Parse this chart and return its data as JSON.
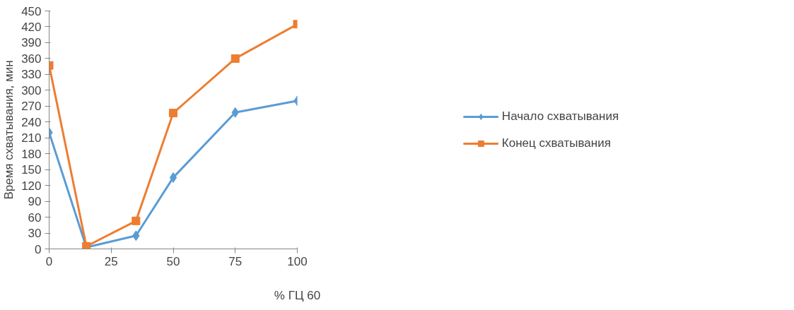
{
  "chart_data": {
    "type": "line",
    "xlabel": "% ГЦ 60",
    "ylabel": "Время схватывания, мин",
    "x": [
      0,
      15,
      35,
      50,
      75,
      100
    ],
    "series": [
      {
        "name": "Начало схватывания",
        "color": "#5b9bd5",
        "marker": "diamond",
        "values": [
          220,
          3,
          25,
          135,
          258,
          280
        ]
      },
      {
        "name": "Конец схватывания",
        "color": "#ed7d31",
        "marker": "square",
        "values": [
          347,
          5,
          53,
          257,
          360,
          425
        ]
      }
    ],
    "xlim": [
      0,
      100
    ],
    "xticks": [
      0,
      25,
      50,
      75,
      100
    ],
    "ylim": [
      0,
      450
    ],
    "yticks": [
      0,
      30,
      60,
      90,
      120,
      150,
      180,
      210,
      240,
      270,
      300,
      330,
      360,
      390,
      420,
      450
    ],
    "grid": false,
    "legend": "right",
    "line_style": "solid"
  }
}
